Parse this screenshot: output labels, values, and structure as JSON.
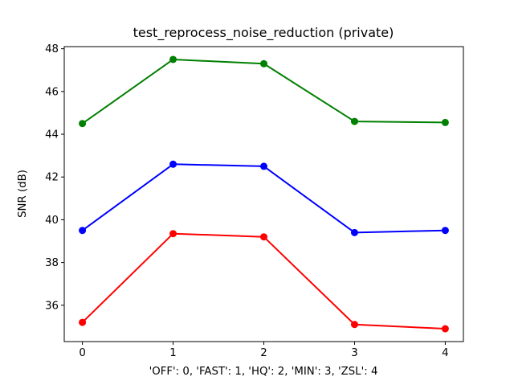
{
  "chart_data": {
    "type": "line",
    "title": "test_reprocess_noise_reduction (private)",
    "xlabel": "'OFF': 0, 'FAST': 1, 'HQ': 2, 'MIN': 3, 'ZSL': 4",
    "ylabel": "SNR (dB)",
    "x": [
      0,
      1,
      2,
      3,
      4
    ],
    "x_tick_labels": [
      "0",
      "1",
      "2",
      "3",
      "4"
    ],
    "y_ticks": [
      36,
      38,
      40,
      42,
      44,
      46,
      48
    ],
    "xlim": [
      -0.2,
      4.2
    ],
    "ylim": [
      34.3,
      48.1
    ],
    "grid": false,
    "legend": "none",
    "marker": "circle",
    "background_color": "#ffffff",
    "spine_color": "#000000",
    "series": [
      {
        "name": "green",
        "color": "#008000",
        "values": [
          44.5,
          47.5,
          47.3,
          44.6,
          44.55
        ]
      },
      {
        "name": "blue",
        "color": "#0000ff",
        "values": [
          39.5,
          42.6,
          42.5,
          39.4,
          39.5
        ]
      },
      {
        "name": "red",
        "color": "#ff0000",
        "values": [
          35.2,
          39.35,
          39.2,
          35.1,
          34.9
        ]
      }
    ]
  }
}
